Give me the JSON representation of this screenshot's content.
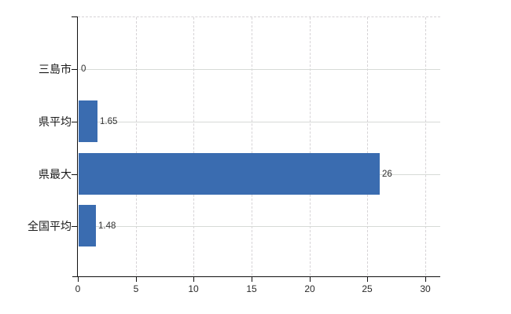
{
  "chart_data": {
    "type": "bar",
    "orientation": "horizontal",
    "title": "",
    "xlabel": "",
    "ylabel": "",
    "categories": [
      "三島市",
      "県平均",
      "県最大",
      "全国平均"
    ],
    "values": [
      0,
      1.65,
      26,
      1.48
    ],
    "value_labels": [
      "0",
      "1.65",
      "26",
      "1.48"
    ],
    "xlim": [
      0,
      30
    ],
    "x_ticks": [
      0,
      5,
      10,
      15,
      20,
      25,
      30
    ],
    "x_tick_labels": [
      "0",
      "5",
      "10",
      "15",
      "20",
      "25",
      "30"
    ],
    "grid": true,
    "legend": false,
    "bar_color": "#3a6cb0",
    "axis_color": "#111111",
    "h_gridline_color": "#d7dad7",
    "v_gridline_color": "#d6d3d6",
    "label_color": "#303030",
    "background": "#ffffff"
  }
}
